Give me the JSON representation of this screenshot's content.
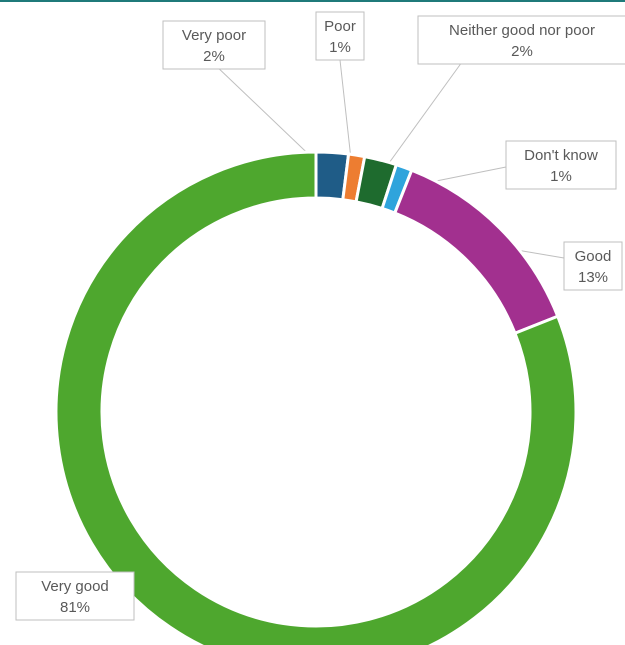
{
  "chart_data": {
    "type": "pie",
    "variant": "doughnut",
    "categories": [
      "Very poor",
      "Poor",
      "Neither good nor poor",
      "Don't know",
      "Good",
      "Very good"
    ],
    "values": [
      2,
      1,
      2,
      1,
      13,
      81
    ],
    "labels": [
      "2%",
      "1%",
      "2%",
      "1%",
      "13%",
      "81%"
    ],
    "colors": [
      "#1f5c87",
      "#ed7d31",
      "#1e6b2e",
      "#2fa4dc",
      "#a2308f",
      "#4ea72e"
    ],
    "legend": "none",
    "data_labels": "callouts"
  }
}
